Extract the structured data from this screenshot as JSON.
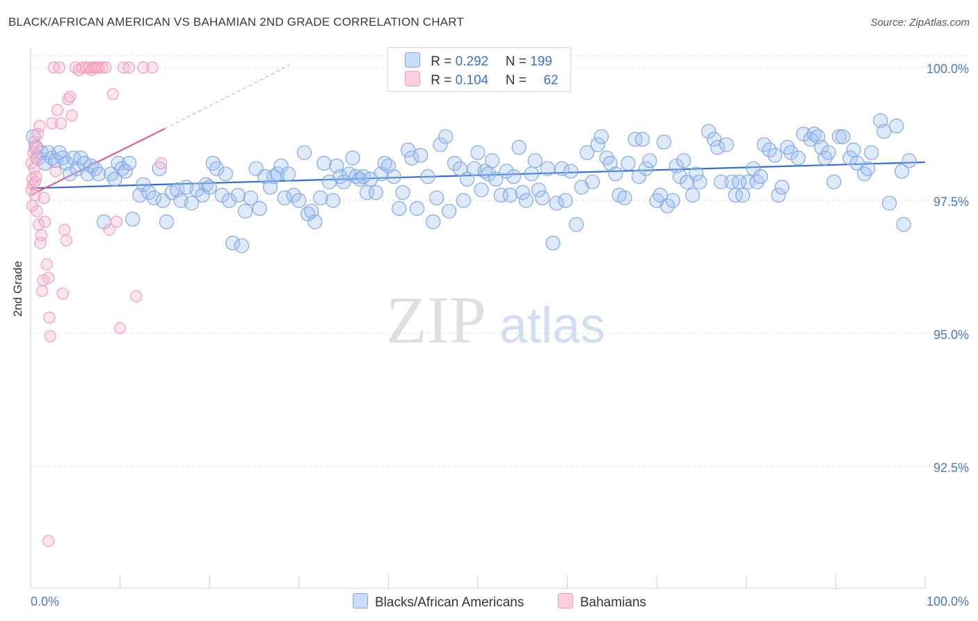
{
  "title": "BLACK/AFRICAN AMERICAN VS BAHAMIAN 2ND GRADE CORRELATION CHART",
  "source": "Source: ZipAtlas.com",
  "watermark": {
    "zip": "ZIP",
    "atlas": "atlas"
  },
  "legend_top": [
    {
      "r_label": "R =",
      "r_value": "0.292",
      "n_label": "N =",
      "n_value": "199",
      "color": "#7fa8e8"
    },
    {
      "r_label": "R =",
      "r_value": "0.104",
      "n_label": "N =",
      "n_value": "62",
      "color": "#f39ab8"
    }
  ],
  "legend_bottom": [
    {
      "label": "Blacks/African Americans",
      "color": "#7fa8e8"
    },
    {
      "label": "Bahamians",
      "color": "#f39ab8"
    }
  ],
  "chart_data": {
    "type": "scatter",
    "ylabel": "2nd Grade",
    "xlim": [
      0,
      100
    ],
    "ylim": [
      90.5,
      100.4
    ],
    "x_tick_labels": [
      "0.0%",
      "100.0%"
    ],
    "y_ticks": [
      92.5,
      95.0,
      97.5,
      100.0
    ],
    "y_tick_labels": [
      "92.5%",
      "95.0%",
      "97.5%",
      "100.0%"
    ],
    "grid": true,
    "series": [
      {
        "name": "Blacks/African Americans",
        "color": "#7fa8e8",
        "line_color": "#2f6fce",
        "trend": {
          "x": [
            0,
            100
          ],
          "y": [
            97.73,
            98.22
          ]
        },
        "points": [
          [
            0.3,
            98.7
          ],
          [
            0.6,
            98.5
          ],
          [
            0.9,
            98.3
          ],
          [
            1.2,
            98.4
          ],
          [
            1.6,
            98.2
          ],
          [
            2.0,
            98.4
          ],
          [
            2.4,
            98.3
          ],
          [
            2.8,
            98.25
          ],
          [
            3.2,
            98.4
          ],
          [
            3.6,
            98.3
          ],
          [
            4.0,
            98.2
          ],
          [
            4.4,
            98.0
          ],
          [
            4.8,
            98.3
          ],
          [
            5.2,
            98.1
          ],
          [
            5.6,
            98.3
          ],
          [
            6.0,
            98.2
          ],
          [
            6.4,
            98.0
          ],
          [
            6.8,
            98.15
          ],
          [
            7.2,
            98.1
          ],
          [
            7.6,
            98.0
          ],
          [
            8.2,
            97.1
          ],
          [
            9.0,
            98.0
          ],
          [
            9.4,
            97.9
          ],
          [
            9.8,
            98.2
          ],
          [
            10.2,
            98.1
          ],
          [
            10.6,
            98.05
          ],
          [
            11.0,
            98.2
          ],
          [
            11.4,
            97.15
          ],
          [
            12.2,
            97.6
          ],
          [
            12.6,
            97.8
          ],
          [
            13.2,
            97.65
          ],
          [
            13.8,
            97.55
          ],
          [
            14.4,
            98.1
          ],
          [
            14.8,
            97.5
          ],
          [
            15.2,
            97.1
          ],
          [
            15.8,
            97.65
          ],
          [
            16.4,
            97.7
          ],
          [
            16.8,
            97.5
          ],
          [
            17.4,
            97.75
          ],
          [
            18.0,
            97.45
          ],
          [
            18.6,
            97.7
          ],
          [
            19.2,
            97.6
          ],
          [
            19.6,
            97.8
          ],
          [
            20.0,
            97.75
          ],
          [
            20.4,
            98.2
          ],
          [
            20.8,
            98.1
          ],
          [
            21.4,
            97.6
          ],
          [
            21.8,
            98.0
          ],
          [
            22.2,
            97.5
          ],
          [
            22.6,
            96.7
          ],
          [
            23.2,
            97.6
          ],
          [
            23.6,
            96.65
          ],
          [
            24.0,
            97.3
          ],
          [
            24.6,
            97.55
          ],
          [
            25.2,
            98.1
          ],
          [
            25.6,
            97.35
          ],
          [
            26.2,
            97.95
          ],
          [
            26.8,
            97.75
          ],
          [
            27.2,
            97.95
          ],
          [
            27.6,
            98.0
          ],
          [
            28.0,
            98.15
          ],
          [
            28.4,
            97.55
          ],
          [
            28.8,
            98.0
          ],
          [
            29.4,
            97.6
          ],
          [
            30.0,
            97.5
          ],
          [
            30.6,
            98.4
          ],
          [
            31.0,
            97.25
          ],
          [
            31.4,
            97.3
          ],
          [
            31.8,
            97.1
          ],
          [
            32.4,
            97.55
          ],
          [
            32.8,
            98.2
          ],
          [
            33.4,
            97.85
          ],
          [
            33.8,
            97.5
          ],
          [
            34.2,
            98.15
          ],
          [
            34.6,
            97.95
          ],
          [
            35.0,
            97.85
          ],
          [
            35.6,
            98.0
          ],
          [
            36.0,
            98.3
          ],
          [
            36.4,
            97.95
          ],
          [
            36.8,
            97.9
          ],
          [
            37.2,
            97.95
          ],
          [
            37.6,
            97.65
          ],
          [
            38.0,
            97.9
          ],
          [
            38.6,
            97.65
          ],
          [
            39.2,
            98.0
          ],
          [
            39.6,
            98.2
          ],
          [
            40.0,
            98.15
          ],
          [
            40.6,
            97.95
          ],
          [
            41.2,
            97.35
          ],
          [
            41.6,
            97.65
          ],
          [
            42.2,
            98.45
          ],
          [
            42.6,
            98.3
          ],
          [
            43.2,
            97.35
          ],
          [
            43.6,
            98.35
          ],
          [
            44.4,
            97.95
          ],
          [
            45.0,
            97.1
          ],
          [
            45.4,
            97.55
          ],
          [
            45.8,
            98.55
          ],
          [
            46.4,
            98.7
          ],
          [
            46.8,
            97.3
          ],
          [
            47.4,
            98.2
          ],
          [
            48.0,
            98.1
          ],
          [
            48.4,
            97.5
          ],
          [
            48.8,
            97.9
          ],
          [
            49.6,
            98.1
          ],
          [
            50.0,
            98.4
          ],
          [
            50.4,
            97.7
          ],
          [
            50.8,
            98.05
          ],
          [
            51.2,
            98.0
          ],
          [
            51.6,
            98.25
          ],
          [
            52.0,
            97.9
          ],
          [
            52.6,
            97.6
          ],
          [
            53.2,
            98.05
          ],
          [
            53.6,
            97.6
          ],
          [
            54.0,
            97.95
          ],
          [
            54.6,
            98.5
          ],
          [
            55.0,
            97.65
          ],
          [
            55.4,
            97.5
          ],
          [
            56.0,
            98.0
          ],
          [
            56.4,
            98.25
          ],
          [
            56.8,
            97.7
          ],
          [
            57.2,
            97.55
          ],
          [
            57.8,
            98.1
          ],
          [
            58.4,
            96.7
          ],
          [
            58.8,
            97.45
          ],
          [
            59.4,
            98.1
          ],
          [
            59.8,
            97.5
          ],
          [
            60.4,
            98.05
          ],
          [
            61.0,
            97.05
          ],
          [
            61.6,
            97.75
          ],
          [
            62.2,
            98.4
          ],
          [
            62.8,
            97.85
          ],
          [
            63.4,
            98.55
          ],
          [
            63.8,
            98.7
          ],
          [
            64.4,
            98.3
          ],
          [
            64.8,
            98.2
          ],
          [
            65.4,
            98.0
          ],
          [
            65.8,
            97.6
          ],
          [
            66.4,
            97.55
          ],
          [
            66.8,
            98.2
          ],
          [
            67.6,
            98.65
          ],
          [
            68.0,
            97.95
          ],
          [
            68.4,
            98.65
          ],
          [
            68.8,
            98.1
          ],
          [
            69.2,
            98.25
          ],
          [
            70.0,
            97.5
          ],
          [
            70.4,
            97.6
          ],
          [
            70.8,
            98.6
          ],
          [
            71.2,
            97.4
          ],
          [
            71.8,
            97.5
          ],
          [
            72.2,
            98.15
          ],
          [
            72.6,
            97.95
          ],
          [
            73.0,
            98.25
          ],
          [
            73.4,
            97.85
          ],
          [
            74.0,
            97.6
          ],
          [
            74.4,
            98.0
          ],
          [
            74.8,
            97.85
          ],
          [
            75.8,
            98.8
          ],
          [
            76.4,
            98.65
          ],
          [
            76.8,
            98.5
          ],
          [
            77.2,
            97.85
          ],
          [
            77.8,
            98.55
          ],
          [
            78.4,
            97.85
          ],
          [
            78.8,
            97.6
          ],
          [
            79.2,
            97.85
          ],
          [
            79.6,
            97.6
          ],
          [
            80.2,
            97.85
          ],
          [
            80.8,
            98.1
          ],
          [
            81.2,
            97.85
          ],
          [
            81.6,
            97.95
          ],
          [
            82.0,
            98.55
          ],
          [
            82.6,
            98.45
          ],
          [
            83.2,
            98.35
          ],
          [
            83.6,
            97.6
          ],
          [
            84.0,
            97.75
          ],
          [
            84.6,
            98.5
          ],
          [
            85.0,
            98.4
          ],
          [
            85.8,
            98.3
          ],
          [
            86.4,
            98.75
          ],
          [
            87.2,
            98.65
          ],
          [
            87.6,
            98.75
          ],
          [
            88.0,
            98.7
          ],
          [
            88.4,
            98.5
          ],
          [
            88.8,
            98.3
          ],
          [
            89.2,
            98.4
          ],
          [
            89.8,
            97.85
          ],
          [
            90.4,
            98.7
          ],
          [
            90.8,
            98.7
          ],
          [
            91.6,
            98.3
          ],
          [
            92.0,
            98.45
          ],
          [
            92.4,
            98.2
          ],
          [
            93.2,
            98.0
          ],
          [
            93.6,
            98.1
          ],
          [
            94.0,
            98.4
          ],
          [
            95.0,
            99.0
          ],
          [
            95.4,
            98.8
          ],
          [
            96.0,
            97.45
          ],
          [
            96.8,
            98.9
          ],
          [
            97.4,
            98.05
          ],
          [
            97.6,
            97.05
          ],
          [
            98.2,
            98.25
          ]
        ]
      },
      {
        "name": "Bahamians",
        "color": "#f39ab8",
        "line_color": "#e0608a",
        "trend": {
          "x": [
            0,
            15
          ],
          "y": [
            97.6,
            98.85
          ],
          "dashed_x": [
            15,
            29
          ],
          "dashed_y": [
            98.85,
            100.05
          ]
        },
        "points": [
          [
            0.1,
            98.2
          ],
          [
            0.1,
            97.7
          ],
          [
            0.2,
            97.9
          ],
          [
            0.2,
            97.4
          ],
          [
            0.3,
            98.4
          ],
          [
            0.3,
            97.8
          ],
          [
            0.4,
            98.6
          ],
          [
            0.4,
            98.1
          ],
          [
            0.5,
            97.85
          ],
          [
            0.5,
            97.6
          ],
          [
            0.6,
            98.3
          ],
          [
            0.6,
            97.95
          ],
          [
            0.7,
            98.5
          ],
          [
            0.7,
            97.3
          ],
          [
            0.8,
            98.75
          ],
          [
            0.9,
            97.05
          ],
          [
            1.0,
            98.9
          ],
          [
            1.1,
            96.7
          ],
          [
            1.2,
            96.85
          ],
          [
            1.3,
            95.8
          ],
          [
            1.4,
            96.0
          ],
          [
            1.5,
            97.55
          ],
          [
            1.6,
            97.1
          ],
          [
            1.8,
            96.3
          ],
          [
            2.0,
            96.05
          ],
          [
            2.1,
            95.3
          ],
          [
            2.2,
            94.95
          ],
          [
            2.4,
            98.95
          ],
          [
            2.6,
            100.0
          ],
          [
            2.8,
            98.05
          ],
          [
            3.0,
            99.2
          ],
          [
            3.2,
            100.0
          ],
          [
            3.4,
            98.95
          ],
          [
            3.6,
            95.75
          ],
          [
            3.8,
            96.95
          ],
          [
            4.0,
            96.75
          ],
          [
            4.2,
            99.4
          ],
          [
            4.4,
            99.45
          ],
          [
            4.6,
            99.1
          ],
          [
            5.0,
            100.0
          ],
          [
            5.4,
            99.95
          ],
          [
            5.8,
            100.0
          ],
          [
            6.2,
            100.0
          ],
          [
            6.6,
            100.0
          ],
          [
            6.8,
            99.95
          ],
          [
            7.0,
            100.0
          ],
          [
            7.2,
            100.0
          ],
          [
            7.4,
            100.0
          ],
          [
            7.6,
            100.0
          ],
          [
            8.0,
            100.0
          ],
          [
            8.4,
            100.0
          ],
          [
            8.8,
            96.95
          ],
          [
            9.2,
            99.5
          ],
          [
            9.6,
            97.1
          ],
          [
            10.0,
            95.1
          ],
          [
            10.4,
            100.0
          ],
          [
            11.0,
            100.0
          ],
          [
            11.8,
            95.7
          ],
          [
            12.6,
            100.0
          ],
          [
            13.6,
            100.0
          ],
          [
            14.6,
            98.2
          ],
          [
            2.0,
            91.1
          ]
        ]
      }
    ]
  }
}
